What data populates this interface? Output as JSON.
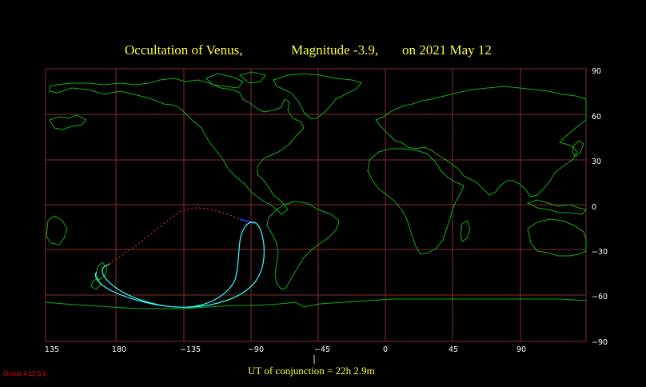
{
  "title": {
    "object": "Occultation  of  Venus,",
    "magnitude": "Magnitude -3.9,",
    "date": "on  2021 May 12"
  },
  "axes": {
    "longitude_ticks": [
      "135",
      "180",
      "−135",
      "−90",
      "−45",
      "0",
      "45",
      "90"
    ],
    "latitude_ticks": [
      "90",
      "60",
      "30",
      "0",
      "−30",
      "−60",
      "−90"
    ],
    "grid": true
  },
  "conjunction_label": "UT of conjunction = 22h  2.9m",
  "version_label": "Occult 4.12.6.0",
  "colors": {
    "background": "#000000",
    "title": "#ffff33",
    "land": "#12b012",
    "grid": "#8a2b2b",
    "path_visible": "#33ffff",
    "path_daylight": "#ff3333",
    "path_twilight": "#3333ff",
    "ticks": "#ffffff",
    "version": "#ff0000"
  }
}
